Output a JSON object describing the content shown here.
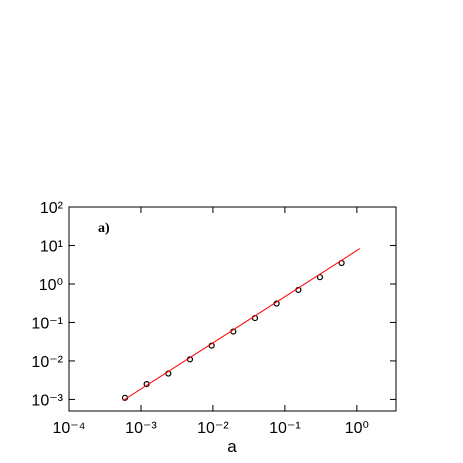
{
  "chart_data": {
    "type": "scatter",
    "x_label": "a",
    "annotation": "a)",
    "log_x": true,
    "log_y": true,
    "xlim": [
      0.0001,
      3.5
    ],
    "ylim": [
      0.0005,
      100
    ],
    "xticks": [
      {
        "value": 0.0001,
        "label": "10⁻⁴"
      },
      {
        "value": 0.001,
        "label": "10⁻³"
      },
      {
        "value": 0.01,
        "label": "10⁻²"
      },
      {
        "value": 0.1,
        "label": "10⁻¹"
      },
      {
        "value": 1,
        "label": "10⁰"
      }
    ],
    "yticks": [
      {
        "value": 0.001,
        "label": "10⁻³"
      },
      {
        "value": 0.01,
        "label": "10⁻²"
      },
      {
        "value": 0.1,
        "label": "10⁻¹"
      },
      {
        "value": 1,
        "label": "10⁰"
      },
      {
        "value": 10,
        "label": "10¹"
      },
      {
        "value": 100,
        "label": "10²"
      }
    ],
    "series": [
      {
        "color": "#000000",
        "marker": "circle",
        "x": [
          0.0006,
          0.0012,
          0.0024,
          0.0048,
          0.0096,
          0.0192,
          0.0384,
          0.0768,
          0.154,
          0.307,
          0.614
        ],
        "values": [
          0.0011,
          0.0025,
          0.0047,
          0.011,
          0.025,
          0.058,
          0.13,
          0.31,
          0.7,
          1.5,
          3.5
        ]
      },
      {
        "color": "#ff0000",
        "line": true,
        "x": [
          0.00056,
          1.1
        ],
        "values": [
          0.00093,
          8.3
        ]
      }
    ]
  }
}
